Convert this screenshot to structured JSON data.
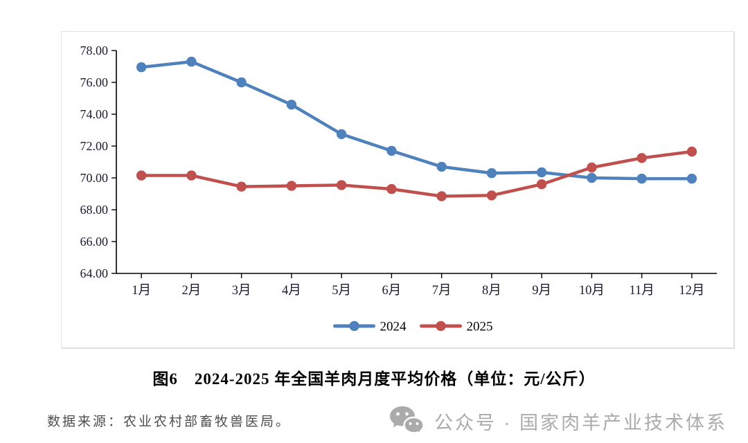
{
  "chart_data": {
    "type": "line",
    "title": "图6　2024-2025 年全国羊肉月度平均价格（单位：元/公斤）",
    "categories": [
      "1月",
      "2月",
      "3月",
      "4月",
      "5月",
      "6月",
      "7月",
      "8月",
      "9月",
      "10月",
      "11月",
      "12月"
    ],
    "series": [
      {
        "name": "2024",
        "color": "#4f81bd",
        "values": [
          76.95,
          77.3,
          76.0,
          74.6,
          72.75,
          71.7,
          70.7,
          70.3,
          70.35,
          70.0,
          69.95,
          69.95
        ]
      },
      {
        "name": "2025",
        "color": "#c0504d",
        "values": [
          70.15,
          70.15,
          69.45,
          69.5,
          69.55,
          69.3,
          68.85,
          68.9,
          69.6,
          70.65,
          71.25,
          71.65
        ]
      }
    ],
    "ylim": [
      64,
      78
    ],
    "ytick_step": 2,
    "ytick_decimals": 2,
    "xlabel": "",
    "ylabel": "",
    "grid": false,
    "legend_position": "bottom",
    "axis_color": "#000000",
    "tick_label_color": "#1a1a2e"
  },
  "source_note": "数据来源：农业农村部畜牧兽医局。",
  "watermark": {
    "icon": "wechat-icon",
    "text": "公众号 · 国家肉羊产业技术体系",
    "color": "#ababab"
  }
}
